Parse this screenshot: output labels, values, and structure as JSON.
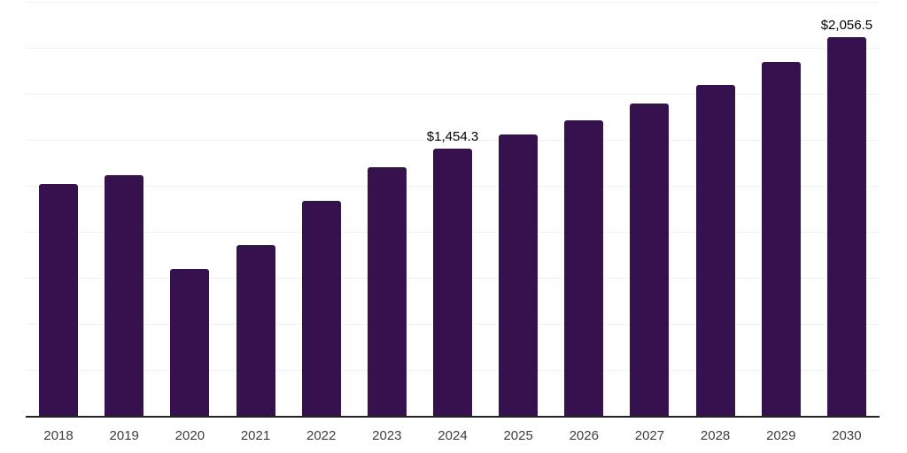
{
  "chart_data": {
    "type": "bar",
    "title": "",
    "xlabel": "",
    "ylabel": "",
    "categories": [
      "2018",
      "2019",
      "2020",
      "2021",
      "2022",
      "2023",
      "2024",
      "2025",
      "2026",
      "2027",
      "2028",
      "2029",
      "2030"
    ],
    "values": [
      1258,
      1309,
      797,
      927,
      1170,
      1351,
      1454.3,
      1531,
      1607,
      1696,
      1800,
      1923,
      2056.5
    ],
    "data_labels": {
      "2024": "$1,454.3",
      "2030": "$2,056.5"
    },
    "ylim": [
      0,
      2250
    ],
    "gridline_interval": 250,
    "grid": "horizontal",
    "y_axis_labels_visible": false,
    "legend": "none",
    "colors": {
      "bar": "#35114E",
      "gridline": "#f1f1f1",
      "axis": "#222222",
      "tick_label": "#3d3d3d",
      "data_label": "#000000",
      "background": "#ffffff"
    }
  }
}
